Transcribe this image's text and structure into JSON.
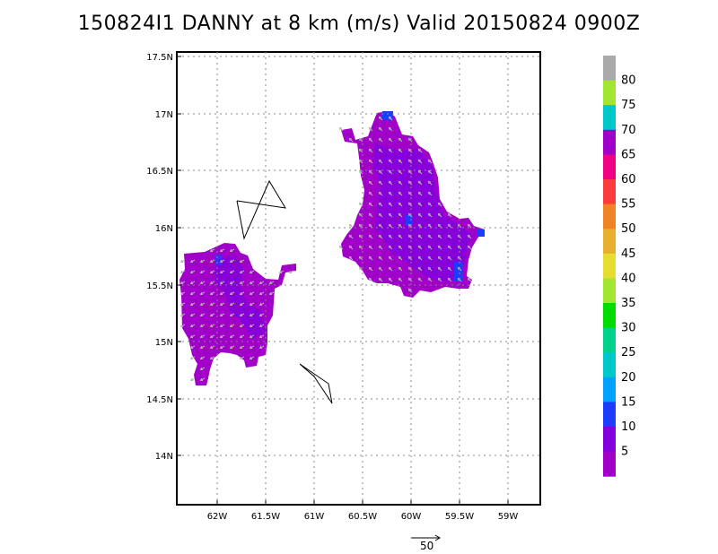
{
  "title": "150824I1 DANNY at 8 km (m/s) Valid 20150824 0900Z",
  "map": {
    "lat_ticks": [
      "17.5N",
      "17N",
      "16.5N",
      "16N",
      "15.5N",
      "15N",
      "14.5N",
      "14N"
    ],
    "lon_ticks": [
      "62W",
      "61.5W",
      "61W",
      "60.5W",
      "60W",
      "59.5W",
      "59W"
    ]
  },
  "legend": {
    "levels": [
      "5",
      "10",
      "15",
      "20",
      "25",
      "30",
      "35",
      "40",
      "45",
      "50",
      "55",
      "60",
      "65",
      "70",
      "75",
      "80"
    ],
    "colors": [
      "#a000c8",
      "#8200dc",
      "#1e3cff",
      "#00a0ff",
      "#00c8c8",
      "#00d28c",
      "#00dc00",
      "#a0e632",
      "#e6dc32",
      "#e6af2d",
      "#f08228",
      "#fa3c3c",
      "#f00082",
      "#a000c8",
      "#00c8c8",
      "#a0e632",
      "#aaaaaa"
    ]
  },
  "reference_vector": {
    "label": "50"
  }
}
